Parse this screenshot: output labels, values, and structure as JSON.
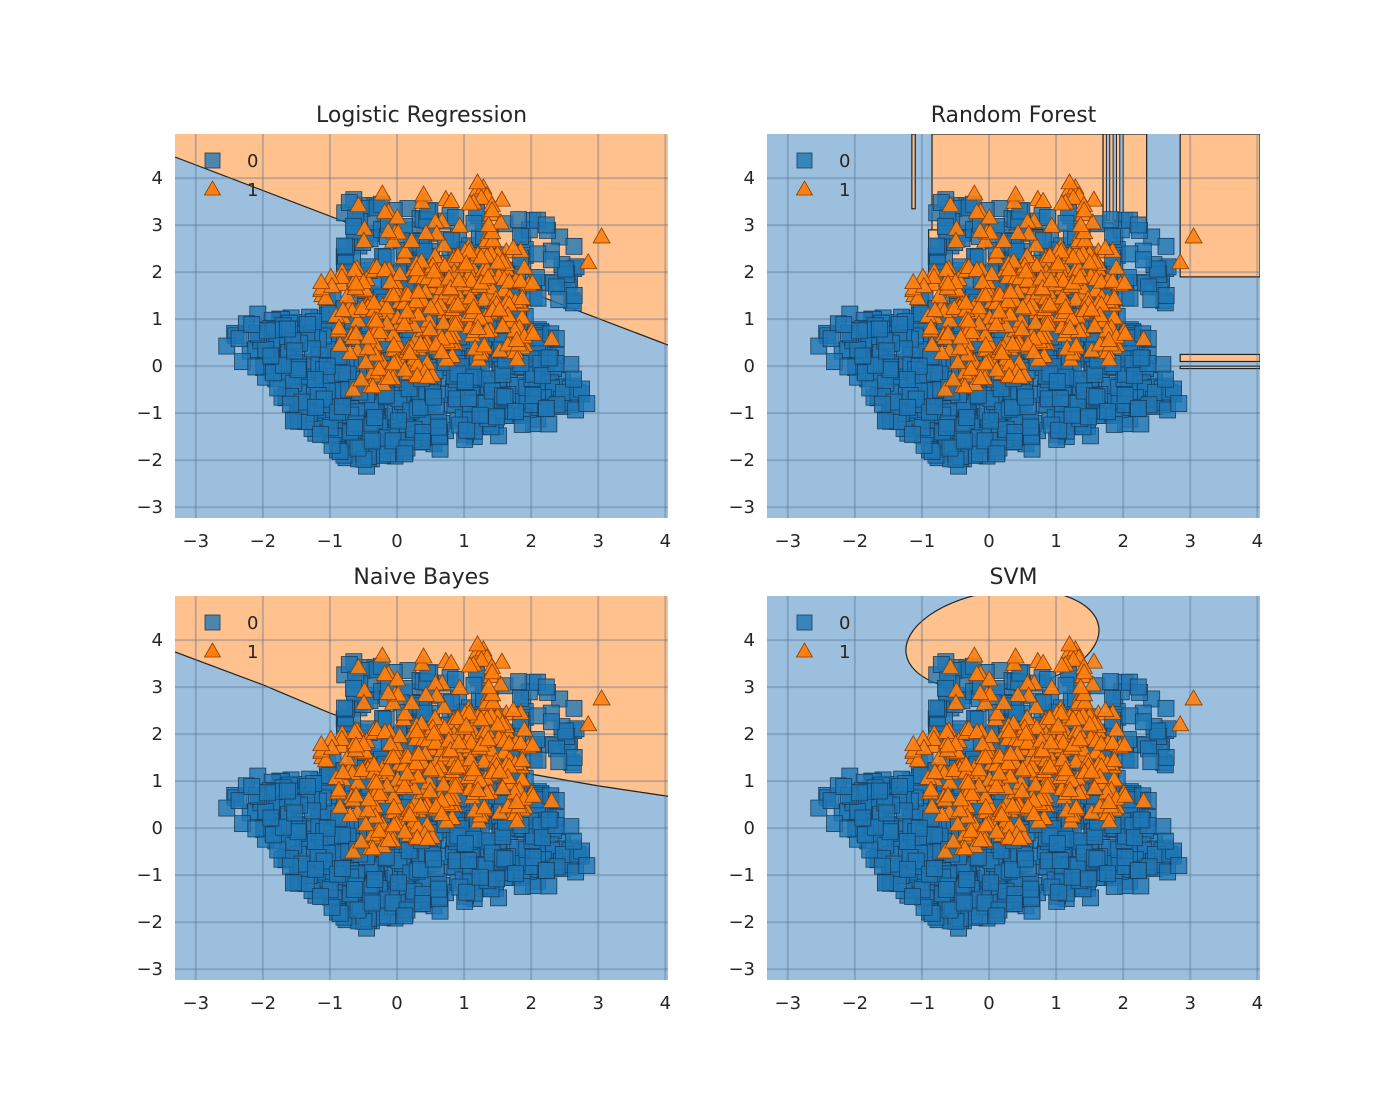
{
  "chart_data": [
    {
      "type": "scatter",
      "title": "Logistic Regression",
      "xlabel": "",
      "ylabel": "",
      "xlim": [
        -3.31,
        4.04
      ],
      "ylim": [
        -3.23,
        4.94
      ],
      "xticks": [
        "−3",
        "−2",
        "−1",
        "0",
        "1",
        "2",
        "3",
        "4"
      ],
      "xtick_values": [
        -3,
        -2,
        -1,
        0,
        1,
        2,
        3,
        4
      ],
      "yticks": [
        "−3",
        "−2",
        "−1",
        "0",
        "1",
        "2",
        "3",
        "4"
      ],
      "ytick_values": [
        -3,
        -2,
        -1,
        0,
        1,
        2,
        3,
        4
      ],
      "grid": true,
      "legend": {
        "placement": "top-left",
        "entries": [
          "0",
          "1"
        ]
      },
      "decision_boundary": {
        "kind": "line",
        "points": [
          [
            -3.31,
            4.45
          ],
          [
            4.04,
            0.45
          ]
        ]
      },
      "region_above": "1",
      "region_below": "0"
    },
    {
      "type": "scatter",
      "title": "Random Forest",
      "xlabel": "",
      "ylabel": "",
      "xlim": [
        -3.31,
        4.04
      ],
      "ylim": [
        -3.23,
        4.94
      ],
      "xticks": [
        "−3",
        "−2",
        "−1",
        "0",
        "1",
        "2",
        "3",
        "4"
      ],
      "xtick_values": [
        -3,
        -2,
        -1,
        0,
        1,
        2,
        3,
        4
      ],
      "yticks": [
        "−3",
        "−2",
        "−1",
        "0",
        "1",
        "2",
        "3",
        "4"
      ],
      "ytick_values": [
        -3,
        -2,
        -1,
        0,
        1,
        2,
        3,
        4
      ],
      "grid": true,
      "legend": {
        "placement": "top-left",
        "entries": [
          "0",
          "1"
        ]
      },
      "decision_boundary": {
        "kind": "rect_regions",
        "class1_rects": [
          [
            -1.15,
            3.35,
            -1.1,
            4.94
          ],
          [
            -0.85,
            2.55,
            1.7,
            4.94
          ],
          [
            -0.9,
            1.3,
            1.9,
            2.9
          ],
          [
            1.7,
            3.05,
            2.35,
            4.94
          ],
          [
            2.85,
            1.9,
            4.04,
            4.94
          ],
          [
            2.85,
            0.1,
            4.04,
            0.25
          ],
          [
            2.85,
            -0.05,
            4.04,
            0.0
          ]
        ]
      }
    },
    {
      "type": "scatter",
      "title": "Naive Bayes",
      "xlabel": "",
      "ylabel": "",
      "xlim": [
        -3.31,
        4.04
      ],
      "ylim": [
        -3.23,
        4.94
      ],
      "xticks": [
        "−3",
        "−2",
        "−1",
        "0",
        "1",
        "2",
        "3",
        "4"
      ],
      "xtick_values": [
        -3,
        -2,
        -1,
        0,
        1,
        2,
        3,
        4
      ],
      "yticks": [
        "−3",
        "−2",
        "−1",
        "0",
        "1",
        "2",
        "3",
        "4"
      ],
      "ytick_values": [
        -3,
        -2,
        -1,
        0,
        1,
        2,
        3,
        4
      ],
      "grid": true,
      "legend": {
        "placement": "top-left",
        "entries": [
          "0",
          "1"
        ]
      },
      "decision_boundary": {
        "kind": "curve",
        "points": [
          [
            -3.31,
            3.75
          ],
          [
            -2,
            3.05
          ],
          [
            -1,
            2.45
          ],
          [
            0,
            1.95
          ],
          [
            1,
            1.5
          ],
          [
            2,
            1.15
          ],
          [
            3,
            0.9
          ],
          [
            4.04,
            0.68
          ]
        ]
      },
      "region_above": "1",
      "region_below": "0"
    },
    {
      "type": "scatter",
      "title": "SVM",
      "xlabel": "",
      "ylabel": "",
      "xlim": [
        -3.31,
        4.04
      ],
      "ylim": [
        -3.23,
        4.94
      ],
      "xticks": [
        "−3",
        "−2",
        "−1",
        "0",
        "1",
        "2",
        "3",
        "4"
      ],
      "xtick_values": [
        -3,
        -2,
        -1,
        0,
        1,
        2,
        3,
        4
      ],
      "yticks": [
        "−3",
        "−2",
        "−1",
        "0",
        "1",
        "2",
        "3",
        "4"
      ],
      "ytick_values": [
        -3,
        -2,
        -1,
        0,
        1,
        2,
        3,
        4
      ],
      "grid": true,
      "legend": {
        "placement": "top-left",
        "entries": [
          "0",
          "1"
        ]
      },
      "decision_boundary": {
        "kind": "ellipse",
        "center": [
          0.2,
          4.0
        ],
        "rx": 1.45,
        "ry": 1.05,
        "angle_deg": -8
      },
      "region_inside": "1",
      "region_outside": "0"
    }
  ],
  "classes": [
    {
      "label": "0",
      "marker": "square",
      "color": "#1f77b4",
      "region_color": "#9bbfdc"
    },
    {
      "label": "1",
      "marker": "triangle",
      "color": "#ff7f0e",
      "region_color": "#ffc18e"
    }
  ],
  "scatter_distribution": {
    "class_0": {
      "center": [
        0.2,
        0.0
      ],
      "count_approx": 1500,
      "x_range": [
        -2.4,
        2.8
      ],
      "y_range": [
        -2.3,
        3.6
      ]
    },
    "class_1": {
      "center": [
        0.6,
        1.0
      ],
      "count_approx": 350,
      "x_range": [
        -1.2,
        3.1
      ],
      "y_range": [
        -1.1,
        3.9
      ]
    }
  }
}
